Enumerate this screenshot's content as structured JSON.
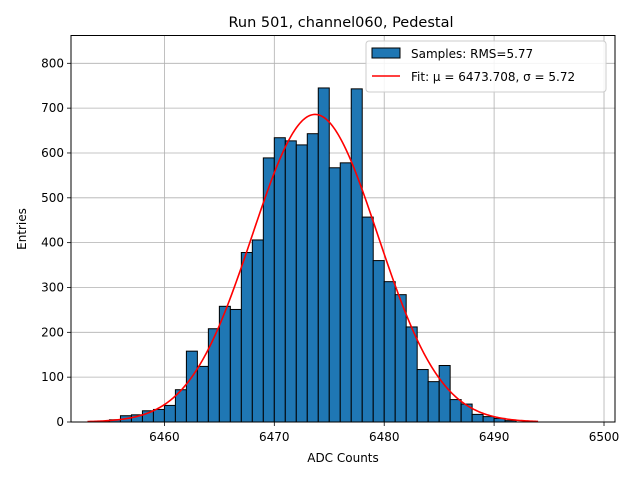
{
  "chart_data": {
    "type": "bar",
    "title": "Run 501, channel060, Pedestal",
    "xlabel": "ADC Counts",
    "ylabel": "Entries",
    "xlim": [
      6451.5,
      6501
    ],
    "ylim": [
      0,
      862
    ],
    "xticks": [
      6460,
      6470,
      6480,
      6490,
      6500
    ],
    "yticks": [
      0,
      100,
      200,
      300,
      400,
      500,
      600,
      700,
      800
    ],
    "grid": true,
    "legend_position": "top-right",
    "histogram": {
      "name": "Samples: RMS=5.77",
      "color": "#1f77b4",
      "bin_width": 1,
      "bin_left_edges": [
        6454,
        6455,
        6456,
        6457,
        6458,
        6459,
        6460,
        6461,
        6462,
        6463,
        6464,
        6465,
        6466,
        6467,
        6468,
        6469,
        6470,
        6471,
        6472,
        6473,
        6474,
        6475,
        6476,
        6477,
        6478,
        6479,
        6480,
        6481,
        6482,
        6483,
        6484,
        6485,
        6486,
        6487,
        6488,
        6489,
        6490,
        6491
      ],
      "values": [
        2,
        5,
        14,
        16,
        25,
        28,
        37,
        72,
        158,
        124,
        208,
        258,
        251,
        378,
        406,
        589,
        634,
        627,
        618,
        643,
        745,
        567,
        578,
        743,
        457,
        360,
        313,
        284,
        212,
        117,
        90,
        126,
        50,
        40,
        17,
        12,
        8,
        3
      ]
    },
    "fit": {
      "name": "Fit: μ = 6473.708, σ = 5.72",
      "color": "#ff0000",
      "mu": 6473.708,
      "sigma": 5.72,
      "amplitude": 686,
      "x_range": [
        6453,
        6494
      ]
    }
  }
}
